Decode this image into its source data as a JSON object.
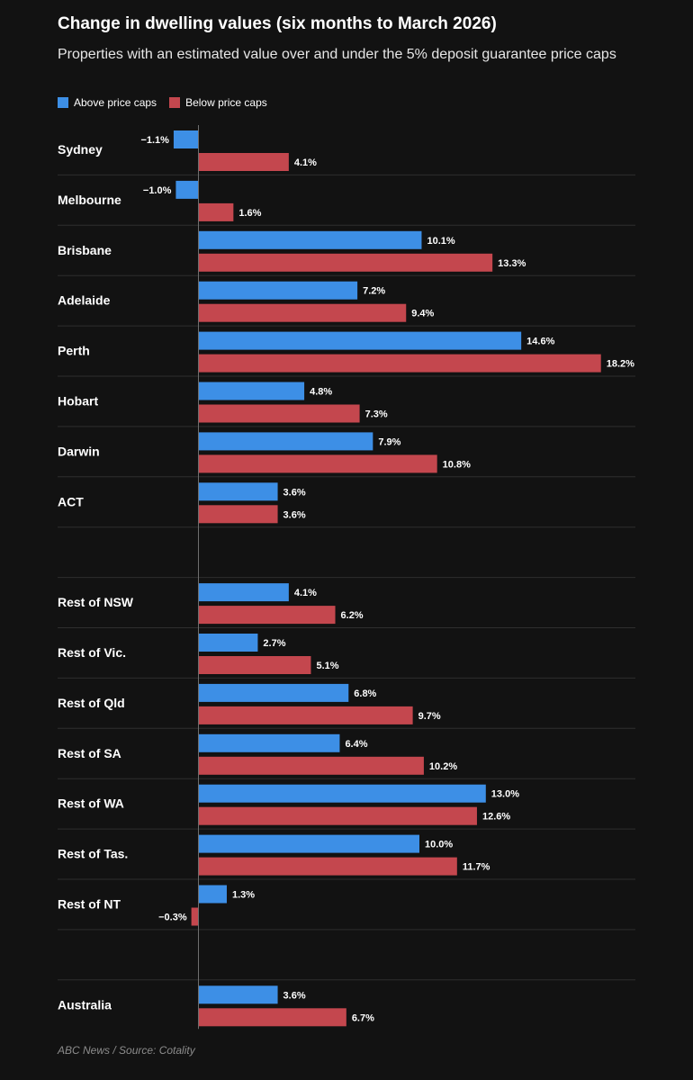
{
  "title": "Change in dwelling values (six months to March 2026)",
  "subtitle": "Properties with an estimated value over and under the 5% deposit guarantee price caps",
  "source": "ABC News / Source: Cotality",
  "colors": {
    "above": "#3d8fe6",
    "below": "#c4474e",
    "grid": "#2e2e2e",
    "axis": "#6e6e6e",
    "background": "#121212"
  },
  "chart_data": {
    "type": "bar",
    "orientation": "horizontal",
    "title": "Change in dwelling values (six months to March 2026)",
    "subtitle": "Properties with an estimated value over and under the 5% deposit guarantee price caps",
    "legend": [
      "Above price caps",
      "Below price caps"
    ],
    "legend_position": "top-left",
    "xlabel": "",
    "ylabel": "",
    "xlim": [
      -1.5,
      18.5
    ],
    "unit": "%",
    "categories": [
      "Sydney",
      "Melbourne",
      "Brisbane",
      "Adelaide",
      "Perth",
      "Hobart",
      "Darwin",
      "ACT",
      "",
      "Rest of NSW",
      "Rest of Vic.",
      "Rest of Qld",
      "Rest of SA",
      "Rest of WA",
      "Rest of Tas.",
      "Rest of NT",
      "",
      "Australia"
    ],
    "series": [
      {
        "name": "Above price caps",
        "values": [
          -1.1,
          -1.0,
          10.1,
          7.2,
          14.6,
          4.8,
          7.9,
          3.6,
          null,
          4.1,
          2.7,
          6.8,
          6.4,
          13.0,
          10.0,
          1.3,
          null,
          3.6
        ],
        "labels": [
          "−1.1%",
          "−1.0%",
          "10.1%",
          "7.2%",
          "14.6%",
          "4.8%",
          "7.9%",
          "3.6%",
          "",
          "4.1%",
          "2.7%",
          "6.8%",
          "6.4%",
          "13.0%",
          "10.0%",
          "1.3%",
          "",
          "3.6%"
        ]
      },
      {
        "name": "Below price caps",
        "values": [
          4.1,
          1.6,
          13.3,
          9.4,
          18.2,
          7.3,
          10.8,
          3.6,
          null,
          6.2,
          5.1,
          9.7,
          10.2,
          12.6,
          11.7,
          -0.3,
          null,
          6.7
        ],
        "labels": [
          "4.1%",
          "1.6%",
          "13.3%",
          "9.4%",
          "18.2%",
          "7.3%",
          "10.8%",
          "3.6%",
          "",
          "6.2%",
          "5.1%",
          "9.7%",
          "10.2%",
          "12.6%",
          "11.7%",
          "−0.3%",
          "",
          "6.7%"
        ]
      }
    ]
  }
}
